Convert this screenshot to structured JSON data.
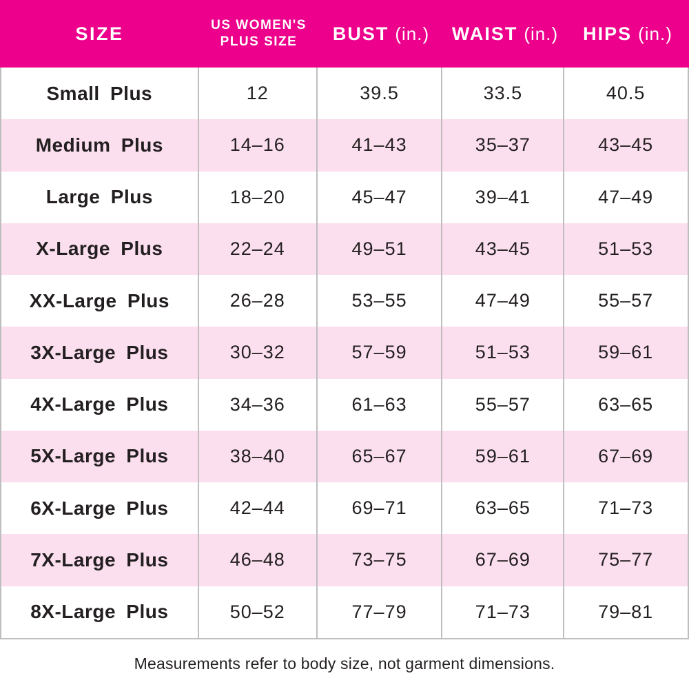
{
  "colors": {
    "header_bg": "#EC008C",
    "header_text": "#FFFFFF",
    "row_white": "#FFFFFF",
    "row_pink": "#FBDFEE",
    "grid_line": "#BEBEBE",
    "text": "#231F20"
  },
  "header": {
    "col_size": "SIZE",
    "col_us_line1": "US WOMEN'S",
    "col_us_line2": "PLUS SIZE",
    "col_bust": "BUST",
    "col_waist": "WAIST",
    "col_hips": "HIPS",
    "unit": "(in.)"
  },
  "chart_data": {
    "type": "table",
    "title": "",
    "columns": [
      "SIZE",
      "US WOMEN'S PLUS SIZE",
      "BUST (in.)",
      "WAIST (in.)",
      "HIPS (in.)"
    ],
    "rows": [
      [
        "Small Plus",
        "12",
        "39.5",
        "33.5",
        "40.5"
      ],
      [
        "Medium Plus",
        "14–16",
        "41–43",
        "35–37",
        "43–45"
      ],
      [
        "Large Plus",
        "18–20",
        "45–47",
        "39–41",
        "47–49"
      ],
      [
        "X-Large Plus",
        "22–24",
        "49–51",
        "43–45",
        "51–53"
      ],
      [
        "XX-Large Plus",
        "26–28",
        "53–55",
        "47–49",
        "55–57"
      ],
      [
        "3X-Large Plus",
        "30–32",
        "57–59",
        "51–53",
        "59–61"
      ],
      [
        "4X-Large Plus",
        "34–36",
        "61–63",
        "55–57",
        "63–65"
      ],
      [
        "5X-Large Plus",
        "38–40",
        "65–67",
        "59–61",
        "67–69"
      ],
      [
        "6X-Large Plus",
        "42–44",
        "69–71",
        "63–65",
        "71–73"
      ],
      [
        "7X-Large Plus",
        "46–48",
        "73–75",
        "67–69",
        "75–77"
      ],
      [
        "8X-Large Plus",
        "50–52",
        "77–79",
        "71–73",
        "79–81"
      ]
    ]
  },
  "footer": {
    "note": "Measurements refer to body size, not garment dimensions."
  }
}
